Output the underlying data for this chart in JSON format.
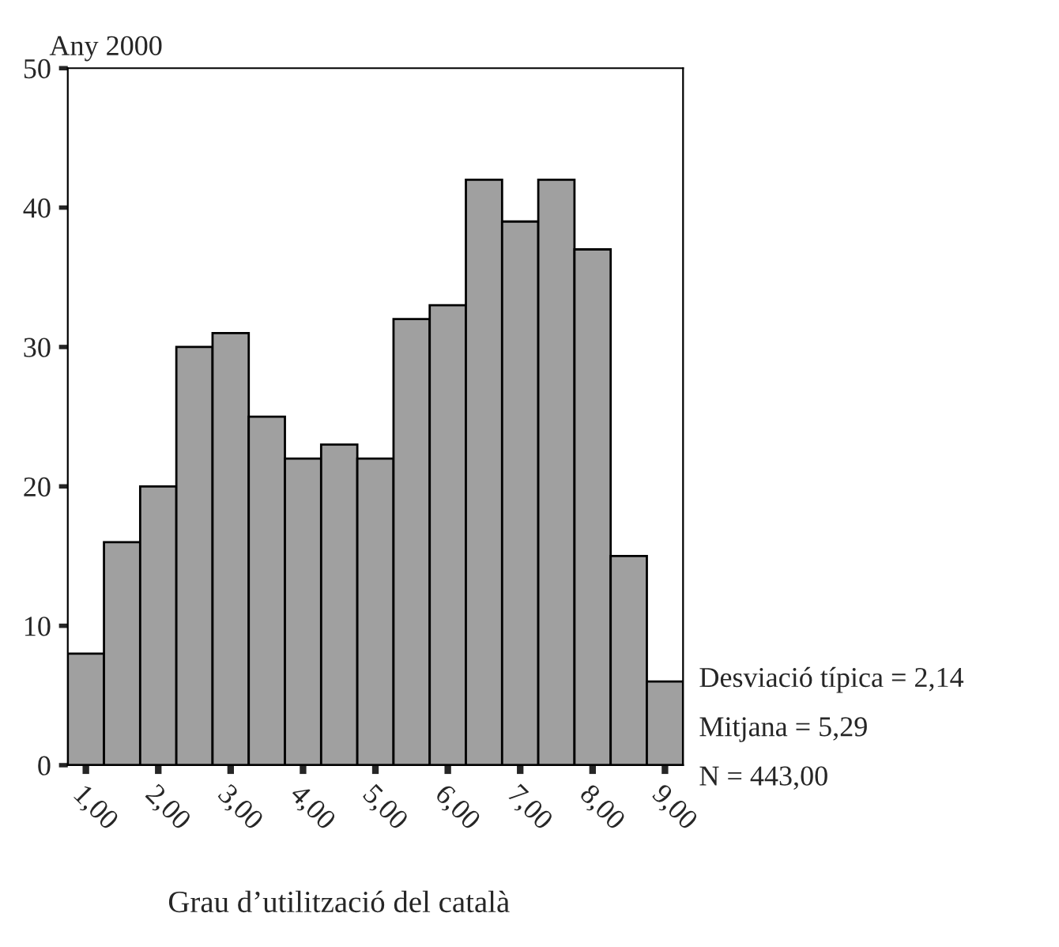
{
  "chart_data": {
    "type": "histogram",
    "ylabel": "Any 2000",
    "xlabel": "Grau d’utilització del català",
    "bins": [
      0.75,
      1.25,
      1.75,
      2.25,
      2.75,
      3.25,
      3.75,
      4.25,
      4.75,
      5.25,
      5.75,
      6.25,
      6.75,
      7.25,
      7.75,
      8.25,
      8.75,
      9.25
    ],
    "values": [
      8,
      16,
      20,
      30,
      31,
      25,
      22,
      23,
      22,
      32,
      33,
      42,
      39,
      42,
      37,
      15,
      6
    ],
    "color": "#a0a0a0",
    "xlim": [
      0.75,
      9.25
    ],
    "xticks": [
      {
        "value": 1,
        "label": "1,00"
      },
      {
        "value": 2,
        "label": "2,00"
      },
      {
        "value": 3,
        "label": "3,00"
      },
      {
        "value": 4,
        "label": "4,00"
      },
      {
        "value": 5,
        "label": "5,00"
      },
      {
        "value": 6,
        "label": "6,00"
      },
      {
        "value": 7,
        "label": "7,00"
      },
      {
        "value": 8,
        "label": "8,00"
      },
      {
        "value": 9,
        "label": "9,00"
      }
    ],
    "ylim": [
      0,
      50
    ],
    "yticks": [
      0,
      10,
      20,
      30,
      40,
      50
    ],
    "grid": false,
    "legend": false,
    "annotations": [
      "Desviació típica = 2,14",
      "Mitjana = 5,29",
      "N = 443,00"
    ]
  }
}
